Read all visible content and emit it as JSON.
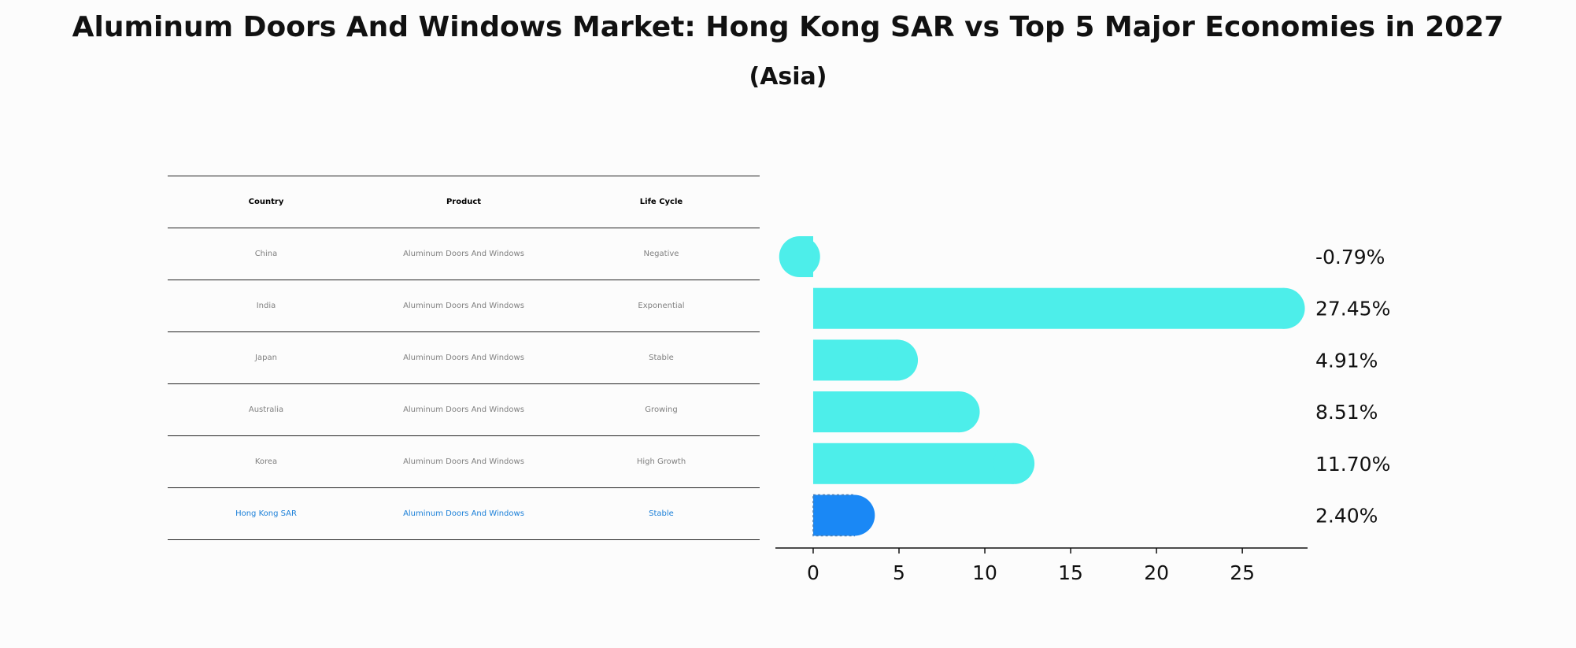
{
  "title": "Aluminum Doors And Windows Market: Hong Kong SAR vs Top 5 Major Economies in 2027",
  "subtitle": "(Asia)",
  "table": {
    "headers": [
      "Country",
      "Product",
      "Life Cycle"
    ],
    "rows": [
      [
        "China",
        "Aluminum Doors And Windows",
        "Negative"
      ],
      [
        "India",
        "Aluminum Doors And Windows",
        "Exponential"
      ],
      [
        "Japan",
        "Aluminum Doors And Windows",
        "Stable"
      ],
      [
        "Australia",
        "Aluminum Doors And Windows",
        "Growing"
      ],
      [
        "Korea",
        "Aluminum Doors And Windows",
        "High Growth"
      ],
      [
        "Hong Kong SAR",
        "Aluminum Doors And Windows",
        "Stable"
      ]
    ],
    "highlight_row": 5
  },
  "chart_data": {
    "type": "bar",
    "orientation": "horizontal",
    "categories": [
      "China",
      "India",
      "Japan",
      "Australia",
      "Korea",
      "Hong Kong SAR"
    ],
    "values": [
      -0.79,
      27.45,
      4.91,
      8.51,
      11.7,
      2.4
    ],
    "value_labels": [
      "-0.79%",
      "27.45%",
      "4.91%",
      "8.51%",
      "11.70%",
      "2.40%"
    ],
    "xlim": [
      -2.2,
      28.8
    ],
    "xticks": [
      0,
      5,
      10,
      15,
      20,
      25
    ],
    "colors": {
      "bar": "#4deeea",
      "highlight": "#1a88f5",
      "text": "#111111"
    },
    "highlight_index": 5,
    "grid": false
  }
}
